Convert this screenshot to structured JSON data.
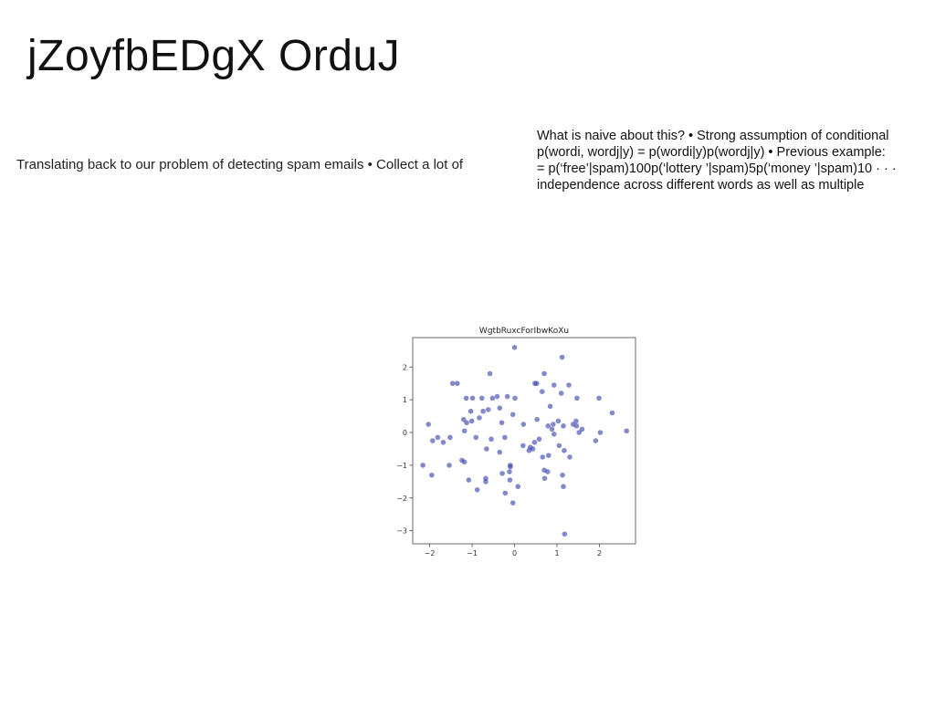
{
  "slide": {
    "title": "jZoyfbEDgX OrduJ",
    "left_text": "Translating back to our problem of detecting spam emails • Collect a lot of",
    "right_text_lines": [
      "What is naive about this? • Strong assumption of conditional",
      "p(wordi, wordj|y) = p(wordi|y)p(wordj|y) • Previous example:",
      "= p(‘free’|spam)100p(‘lottery ’|spam)5p(‘money ’|spam)10 · · ·",
      "independence across different words as well as multiple"
    ]
  },
  "chart_data": {
    "type": "scatter",
    "title": "WgtbRuxcForIbwKoXu",
    "xlabel": "",
    "ylabel": "",
    "xlim": [
      -2.4,
      2.85
    ],
    "ylim": [
      -3.4,
      2.9
    ],
    "xticks": [
      -2,
      -1,
      0,
      1,
      2
    ],
    "yticks": [
      -3,
      -2,
      -1,
      0,
      1,
      2
    ],
    "grid": false,
    "point_color": "#3f4bb0",
    "x": [
      0.0,
      1.12,
      -0.58,
      0.48,
      0.52,
      0.7,
      1.28,
      -1.46,
      -1.35,
      0.93,
      -0.99,
      -1.14,
      -0.77,
      -0.41,
      0.65,
      1.1,
      0.01,
      -0.17,
      -0.52,
      1.47,
      1.99,
      -0.62,
      2.3,
      -0.35,
      -0.04,
      -1.03,
      -0.83,
      0.84,
      -0.74,
      -1.2,
      1.15,
      0.91,
      2.02,
      0.53,
      -0.3,
      1.38,
      0.21,
      0.79,
      -2.03,
      1.03,
      1.45,
      -1.13,
      -1.01,
      1.59,
      0.88,
      1.46,
      2.64,
      -1.18,
      1.52,
      1.91,
      -1.52,
      -1.68,
      -1.93,
      0.58,
      -1.81,
      -0.23,
      0.93,
      -0.91,
      -0.55,
      0.47,
      0.37,
      0.43,
      0.2,
      0.34,
      1.05,
      1.3,
      -1.24,
      0.66,
      -1.18,
      -0.35,
      1.17,
      -0.66,
      -0.12,
      0.8,
      -1.54,
      -0.1,
      -0.1,
      -0.29,
      -2.16,
      0.78,
      -1.08,
      0.71,
      -0.68,
      1.13,
      -1.95,
      -0.68,
      0.08,
      1.15,
      -0.11,
      0.7,
      -0.88,
      -0.22,
      -0.04,
      1.18
    ],
    "y": [
      2.6,
      2.3,
      1.8,
      1.5,
      1.5,
      1.8,
      1.45,
      1.5,
      1.5,
      1.45,
      1.05,
      1.05,
      1.05,
      1.1,
      1.25,
      1.2,
      1.05,
      1.1,
      1.05,
      1.05,
      1.05,
      0.7,
      0.6,
      0.75,
      0.55,
      0.65,
      0.45,
      0.8,
      0.65,
      0.4,
      0.2,
      0.25,
      0.0,
      0.4,
      0.3,
      0.25,
      0.25,
      0.2,
      0.25,
      0.35,
      0.35,
      0.3,
      0.35,
      0.1,
      0.1,
      0.2,
      0.05,
      0.05,
      0.0,
      -0.25,
      -0.15,
      -0.3,
      -0.25,
      -0.2,
      -0.15,
      -0.15,
      -0.05,
      -0.15,
      -0.2,
      -0.3,
      -0.45,
      -0.5,
      -0.4,
      -0.55,
      -0.4,
      -0.75,
      -0.85,
      -0.75,
      -0.9,
      -0.6,
      -0.55,
      -0.5,
      -1.2,
      -0.7,
      -1.0,
      -1.0,
      -1.05,
      -1.25,
      -1.0,
      -1.2,
      -1.45,
      -1.4,
      -1.4,
      -1.3,
      -1.3,
      -1.5,
      -1.65,
      -1.65,
      -1.45,
      -1.15,
      -1.75,
      -1.85,
      -2.15,
      -3.1
    ]
  }
}
